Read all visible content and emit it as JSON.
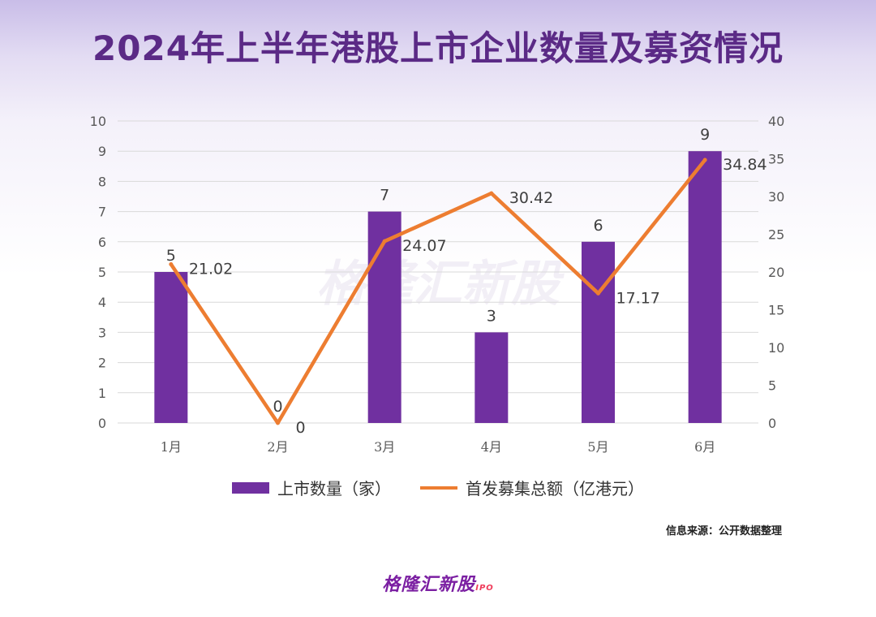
{
  "title": "2024年上半年港股上市企业数量及募资情况",
  "chart_data": {
    "type": "bar",
    "categories": [
      "1月",
      "2月",
      "3月",
      "4月",
      "5月",
      "6月"
    ],
    "series": [
      {
        "name": "上市数量（家）",
        "type": "bar",
        "axis": "left",
        "values": [
          5,
          0,
          7,
          3,
          6,
          9
        ],
        "labels": [
          "5",
          "0",
          "7",
          "3",
          "6",
          "9"
        ]
      },
      {
        "name": "首发募集总额（亿港元）",
        "type": "line",
        "axis": "right",
        "values": [
          21.02,
          0,
          24.07,
          30.42,
          17.17,
          34.84
        ],
        "labels": [
          "21.02",
          "0",
          "24.07",
          "30.42",
          "17.17",
          "34.84"
        ]
      }
    ],
    "left_axis": {
      "ylim": [
        0,
        10
      ],
      "ticks": [
        "0",
        "1",
        "2",
        "3",
        "4",
        "5",
        "6",
        "7",
        "8",
        "9",
        "10"
      ]
    },
    "right_axis": {
      "ylim": [
        0,
        40
      ],
      "ticks": [
        "0",
        "5",
        "10",
        "15",
        "20",
        "25",
        "30",
        "35",
        "40"
      ]
    },
    "grid": true,
    "legend_position": "bottom",
    "colors": {
      "bar": "#7030a0",
      "line": "#ed7d31"
    }
  },
  "watermark": "格隆汇新股",
  "source": "信息来源：公开数据整理",
  "footer": {
    "logo_text": "格隆汇新股",
    "logo_suffix": "IPO"
  }
}
